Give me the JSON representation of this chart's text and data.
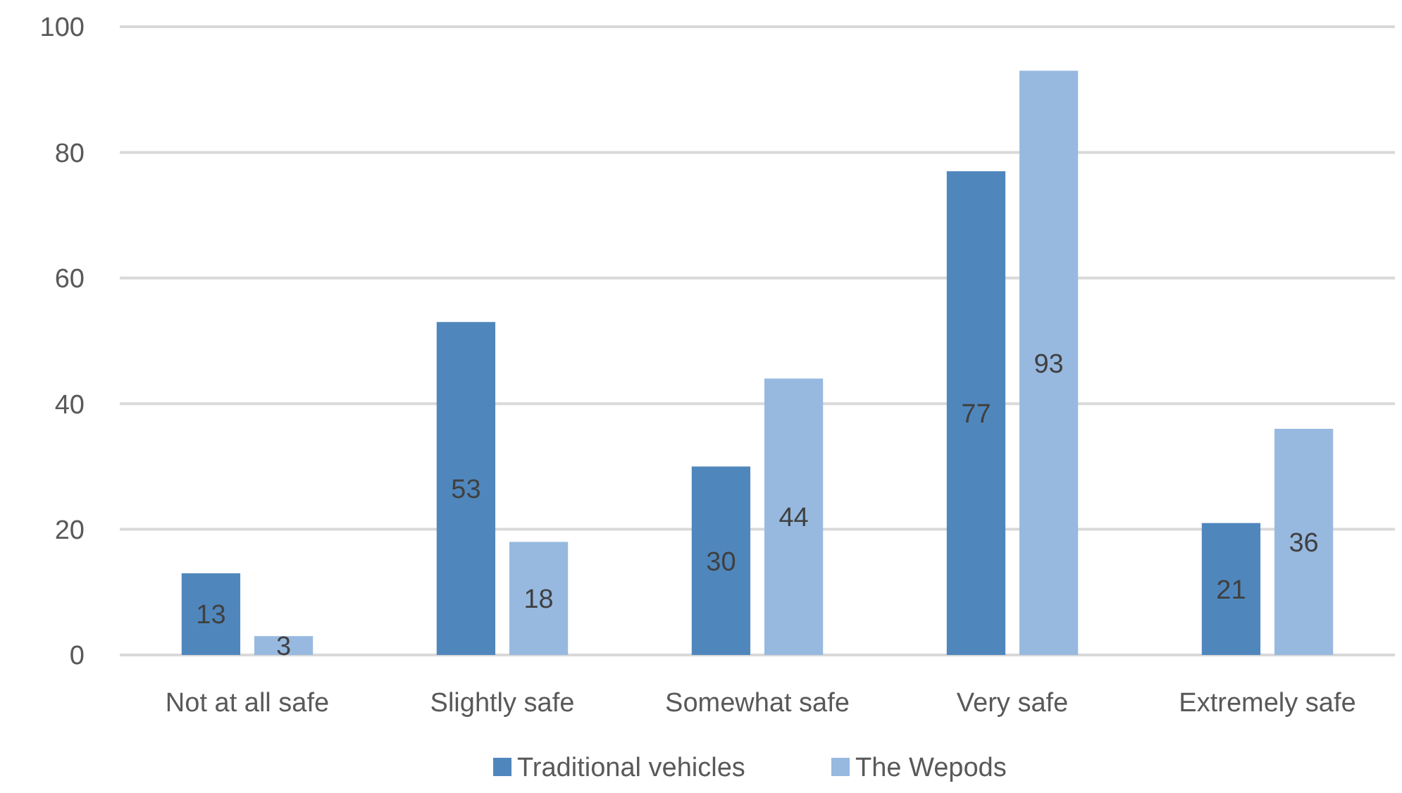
{
  "chart_data": {
    "type": "bar",
    "categories": [
      "Not at all safe",
      "Slightly safe",
      "Somewhat safe",
      "Very safe",
      "Extremely safe"
    ],
    "series": [
      {
        "name": "Traditional vehicles",
        "color": "#4f87bd",
        "values": [
          13,
          53,
          30,
          77,
          21
        ]
      },
      {
        "name": "The Wepods",
        "color": "#97b9e0",
        "values": [
          3,
          18,
          44,
          93,
          36
        ]
      }
    ],
    "ylim": [
      0,
      100
    ],
    "yticks": [
      0,
      20,
      40,
      60,
      80,
      100
    ],
    "grid": "y",
    "legend": "bottom",
    "data_labels": true
  }
}
